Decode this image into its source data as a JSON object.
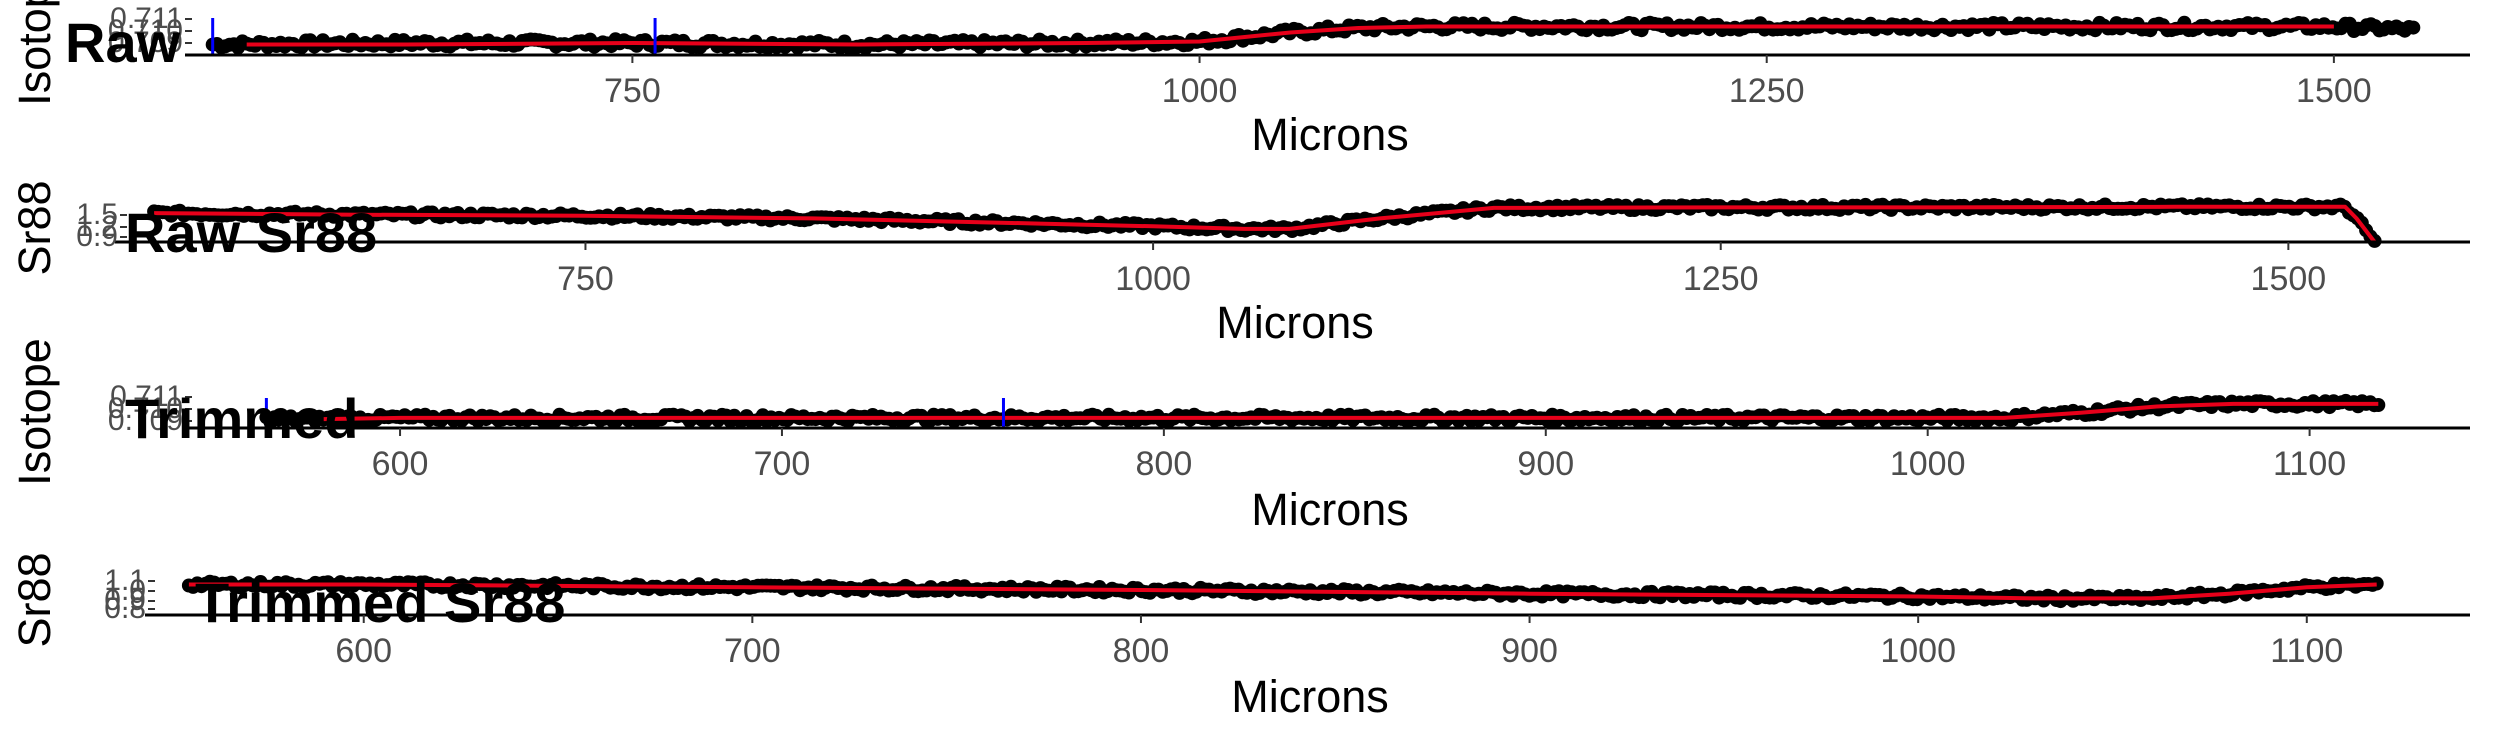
{
  "chart_data": [
    {
      "type": "scatter",
      "title": "Raw",
      "xlabel": "Microns",
      "ylabel": "Isotope",
      "xlim": [
        555,
        1560
      ],
      "ylim": [
        0.7085,
        0.7115
      ],
      "xticks": [
        750,
        1000,
        1250,
        1500
      ],
      "yticks": [
        0.709,
        0.71,
        0.711
      ],
      "ytick_labels": [
        "0.709",
        "0.710",
        "0.711"
      ],
      "markers": [
        565,
        760
      ],
      "series": [
        {
          "kind": "points",
          "x": [
            565,
            650,
            750,
            850,
            950,
            1000,
            1040,
            1070,
            1100,
            1200,
            1300,
            1400,
            1500,
            1535
          ],
          "y": [
            0.7092,
            0.7093,
            0.7093,
            0.7092,
            0.7093,
            0.7094,
            0.71,
            0.7103,
            0.7104,
            0.7104,
            0.7104,
            0.7104,
            0.7104,
            0.7102
          ],
          "jitter": 0.00025
        },
        {
          "kind": "smooth",
          "x": [
            580,
            650,
            750,
            850,
            950,
            1000,
            1040,
            1070,
            1100,
            1200,
            1300,
            1400,
            1500
          ],
          "y": [
            0.7092,
            0.7092,
            0.7093,
            0.7092,
            0.7093,
            0.7094,
            0.71,
            0.7103,
            0.7104,
            0.7104,
            0.7104,
            0.7104,
            0.7104
          ]
        }
      ]
    },
    {
      "type": "scatter",
      "title": "Raw Sr88",
      "xlabel": "Microns",
      "ylabel": "Sr88",
      "xlim": [
        545,
        1580
      ],
      "ylim": [
        0.8,
        1.6
      ],
      "xticks": [
        750,
        1000,
        1250,
        1500
      ],
      "yticks": [
        0.9,
        1.2,
        1.5
      ],
      "ytick_labels": [
        "0.9",
        "1.2",
        "1.5"
      ],
      "markers": [],
      "series": [
        {
          "kind": "points",
          "x": [
            560,
            650,
            750,
            850,
            950,
            1000,
            1040,
            1060,
            1100,
            1150,
            1250,
            1350,
            1450,
            1500,
            1525,
            1530,
            1538
          ],
          "y": [
            1.35,
            1.32,
            1.3,
            1.25,
            1.15,
            1.1,
            1.05,
            1.05,
            1.25,
            1.45,
            1.46,
            1.46,
            1.47,
            1.47,
            1.47,
            1.25,
            0.8
          ],
          "jitter": 0.05
        },
        {
          "kind": "smooth",
          "x": [
            560,
            650,
            750,
            850,
            950,
            1000,
            1040,
            1060,
            1100,
            1150,
            1250,
            1350,
            1450,
            1500,
            1525,
            1530,
            1538
          ],
          "y": [
            1.35,
            1.32,
            1.3,
            1.25,
            1.15,
            1.1,
            1.05,
            1.05,
            1.25,
            1.45,
            1.46,
            1.46,
            1.47,
            1.47,
            1.47,
            1.25,
            0.8
          ]
        }
      ]
    },
    {
      "type": "scatter",
      "title": "Trimmed",
      "xlabel": "Microns",
      "ylabel": "Isotope",
      "xlim": [
        545,
        1142
      ],
      "ylim": [
        0.7085,
        0.7115
      ],
      "xticks": [
        600,
        700,
        800,
        900,
        1000,
        1100
      ],
      "yticks": [
        0.709,
        0.71,
        0.711
      ],
      "ytick_labels": [
        "0.709",
        "0.710",
        "0.711"
      ],
      "markers": [
        565,
        758
      ],
      "series": [
        {
          "kind": "points",
          "x": [
            565,
            600,
            700,
            800,
            900,
            1000,
            1020,
            1040,
            1060,
            1080,
            1100,
            1118
          ],
          "y": [
            0.7092,
            0.7093,
            0.7093,
            0.7093,
            0.7093,
            0.7093,
            0.7093,
            0.7097,
            0.7102,
            0.7104,
            0.7104,
            0.7104
          ],
          "jitter": 0.00025
        },
        {
          "kind": "smooth",
          "x": [
            580,
            600,
            700,
            800,
            900,
            1000,
            1020,
            1040,
            1060,
            1080,
            1100,
            1118
          ],
          "y": [
            0.7092,
            0.7093,
            0.7093,
            0.7093,
            0.7093,
            0.7093,
            0.7093,
            0.7097,
            0.7102,
            0.7104,
            0.7104,
            0.7104
          ]
        }
      ]
    },
    {
      "type": "scatter",
      "title": "Trimmed Sr88",
      "xlabel": "Microns",
      "ylabel": "Sr88",
      "xlim": [
        545,
        1142
      ],
      "ylim": [
        0.75,
        1.15
      ],
      "xticks": [
        600,
        700,
        800,
        900,
        1000,
        1100
      ],
      "yticks": [
        0.8,
        0.9,
        1.0,
        1.1
      ],
      "ytick_labels": [
        "0.8",
        "0.9",
        "1.0",
        "1.1"
      ],
      "markers": [],
      "series": [
        {
          "kind": "points",
          "x": [
            555,
            600,
            700,
            800,
            900,
            1000,
            1030,
            1060,
            1080,
            1100,
            1118
          ],
          "y": [
            1.08,
            1.08,
            1.05,
            1.02,
            0.98,
            0.95,
            0.93,
            0.93,
            0.98,
            1.05,
            1.08
          ],
          "jitter": 0.03
        },
        {
          "kind": "smooth",
          "x": [
            555,
            600,
            700,
            800,
            900,
            1000,
            1030,
            1060,
            1080,
            1100,
            1118
          ],
          "y": [
            1.08,
            1.08,
            1.05,
            1.02,
            0.98,
            0.95,
            0.93,
            0.93,
            0.98,
            1.05,
            1.08
          ]
        }
      ]
    }
  ]
}
